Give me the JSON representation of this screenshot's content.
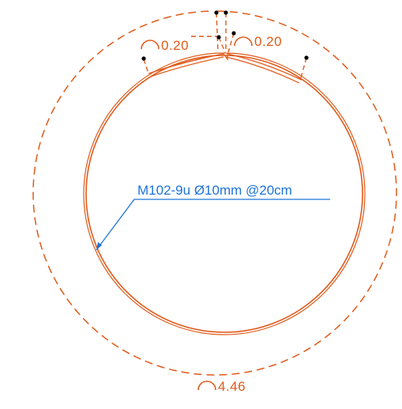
{
  "drawing": {
    "rebar_label": "M102-9u Ø10mm @20cm",
    "arc_dim_top_left": "0.20",
    "arc_dim_top_right": "0.20",
    "arc_dim_bottom": "4.46",
    "colors": {
      "rebar": "#e05a1a",
      "dimension": "#e05a1a",
      "leader": "#1e73d8",
      "dot": "#000000",
      "background": "#ffffff"
    }
  }
}
